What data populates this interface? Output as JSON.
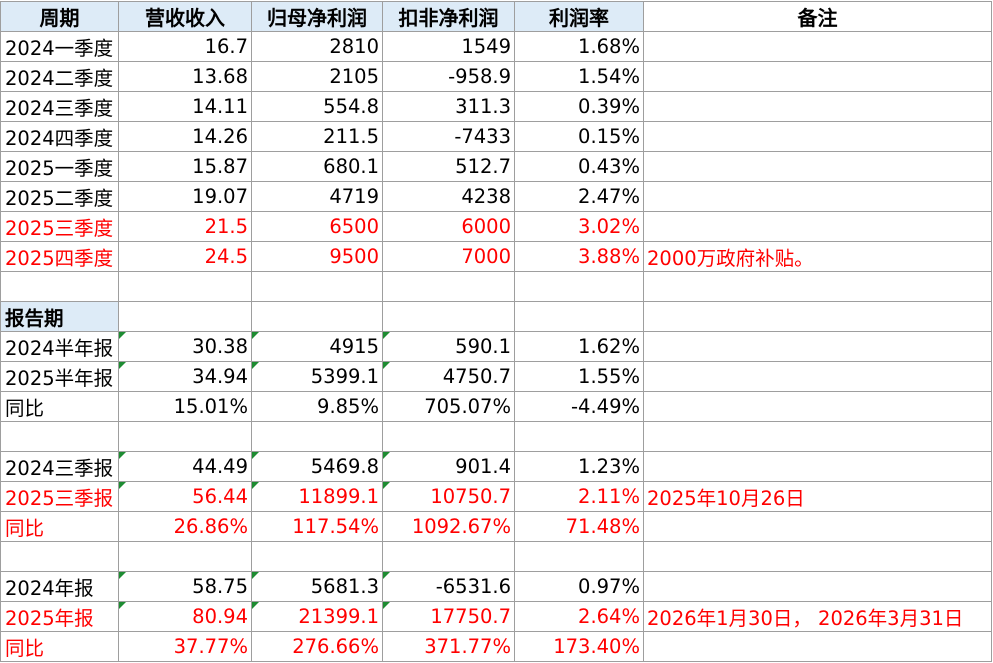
{
  "headers": [
    "周期",
    "营收收入",
    "归母净利润",
    "扣非净利润",
    "利润率",
    "备注"
  ],
  "quarterly": [
    {
      "period": "2024一季度",
      "revenue": "16.7",
      "net_profit": "2810",
      "deducted_profit": "1549",
      "margin": "1.68%",
      "note": "",
      "highlight": false
    },
    {
      "period": "2024二季度",
      "revenue": "13.68",
      "net_profit": "2105",
      "deducted_profit": "-958.9",
      "margin": "1.54%",
      "note": "",
      "highlight": false
    },
    {
      "period": "2024三季度",
      "revenue": "14.11",
      "net_profit": "554.8",
      "deducted_profit": "311.3",
      "margin": "0.39%",
      "note": "",
      "highlight": false
    },
    {
      "period": "2024四季度",
      "revenue": "14.26",
      "net_profit": "211.5",
      "deducted_profit": "-7433",
      "margin": "0.15%",
      "note": "",
      "highlight": false
    },
    {
      "period": "2025一季度",
      "revenue": "15.87",
      "net_profit": "680.1",
      "deducted_profit": "512.7",
      "margin": "0.43%",
      "note": "",
      "highlight": false
    },
    {
      "period": "2025二季度",
      "revenue": "19.07",
      "net_profit": "4719",
      "deducted_profit": "4238",
      "margin": "2.47%",
      "note": "",
      "highlight": false
    },
    {
      "period": "2025三季度",
      "revenue": "21.5",
      "net_profit": "6500",
      "deducted_profit": "6000",
      "margin": "3.02%",
      "note": "",
      "highlight": true
    },
    {
      "period": "2025四季度",
      "revenue": "24.5",
      "net_profit": "9500",
      "deducted_profit": "7000",
      "margin": "3.88%",
      "note": "2000万政府补贴。",
      "highlight": true
    }
  ],
  "report_section_label": "报告期",
  "report_groups": [
    [
      {
        "period": "2024半年报",
        "revenue": "30.38",
        "net_profit": "4915",
        "deducted_profit": "590.1",
        "margin": "1.62%",
        "note": "",
        "highlight": false
      },
      {
        "period": "2025半年报",
        "revenue": "34.94",
        "net_profit": "5399.1",
        "deducted_profit": "4750.7",
        "margin": "1.55%",
        "note": "",
        "highlight": false
      },
      {
        "period": "同比",
        "revenue": "15.01%",
        "net_profit": "9.85%",
        "deducted_profit": "705.07%",
        "margin": "-4.49%",
        "note": "",
        "highlight": false
      }
    ],
    [
      {
        "period": "2024三季报",
        "revenue": "44.49",
        "net_profit": "5469.8",
        "deducted_profit": "901.4",
        "margin": "1.23%",
        "note": "",
        "highlight": false
      },
      {
        "period": "2025三季报",
        "revenue": "56.44",
        "net_profit": "11899.1",
        "deducted_profit": "10750.7",
        "margin": "2.11%",
        "note": "2025年10月26日",
        "highlight": true
      },
      {
        "period": "同比",
        "revenue": "26.86%",
        "net_profit": "117.54%",
        "deducted_profit": "1092.67%",
        "margin": "71.48%",
        "note": "",
        "highlight": true
      }
    ],
    [
      {
        "period": "2024年报",
        "revenue": "58.75",
        "net_profit": "5681.3",
        "deducted_profit": "-6531.6",
        "margin": "0.97%",
        "note": "",
        "highlight": false
      },
      {
        "period": "2025年报",
        "revenue": "80.94",
        "net_profit": "21399.1",
        "deducted_profit": "17750.7",
        "margin": "2.64%",
        "note": "2026年1月30日， 2026年3月31日",
        "highlight": true
      },
      {
        "period": "同比",
        "revenue": "37.77%",
        "net_profit": "276.66%",
        "deducted_profit": "371.77%",
        "margin": "173.40%",
        "note": "",
        "highlight": true
      }
    ]
  ],
  "colors": {
    "header_fill": "#ddebf7",
    "highlight_text": "#ff0000",
    "grid": "#9e9e9e",
    "error_triangle": "#1e8c32"
  }
}
